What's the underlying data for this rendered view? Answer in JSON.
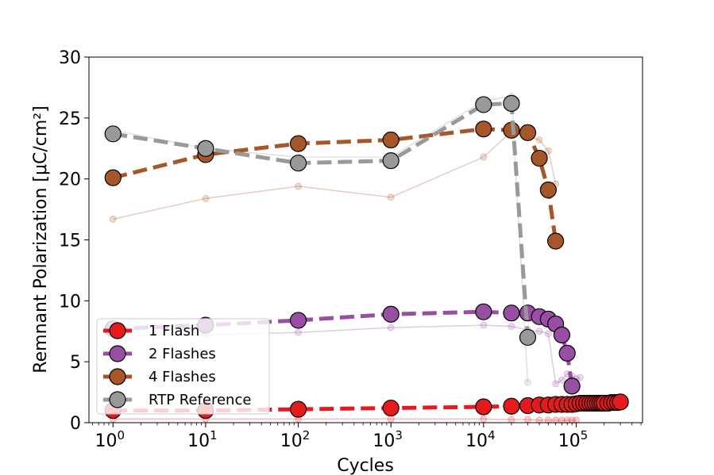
{
  "chart_data": {
    "type": "line",
    "title": "",
    "xlabel": "Cycles",
    "ylabel": "Remnant Polarization [μC/cm²]",
    "xscale": "log",
    "xlim": [
      0.55,
      520000
    ],
    "ylim": [
      0,
      30
    ],
    "x_ticks": [
      {
        "value": 1,
        "base": "10",
        "exp": "0"
      },
      {
        "value": 10,
        "base": "10",
        "exp": "1"
      },
      {
        "value": 100,
        "base": "10",
        "exp": "2"
      },
      {
        "value": 1000,
        "base": "10",
        "exp": "3"
      },
      {
        "value": 10000,
        "base": "10",
        "exp": "4"
      },
      {
        "value": 100000,
        "base": "10",
        "exp": "5"
      }
    ],
    "y_ticks": [
      "0",
      "5",
      "10",
      "15",
      "20",
      "25",
      "30"
    ],
    "legend_position": "lower-left",
    "series": [
      {
        "name": "1 Flash",
        "color": "#e41a1c",
        "main": {
          "x": [
            1,
            10,
            100,
            1000,
            10000,
            20000,
            30000,
            40000,
            50000,
            60000,
            70000,
            80000,
            90000,
            100000,
            110000,
            120000,
            130000,
            140000,
            150000,
            160000,
            170000,
            180000,
            190000,
            200000,
            220000,
            240000,
            260000,
            280000,
            300000
          ],
          "y": [
            1.0,
            1.0,
            1.1,
            1.2,
            1.3,
            1.35,
            1.4,
            1.45,
            1.45,
            1.5,
            1.5,
            1.5,
            1.5,
            1.55,
            1.6,
            1.6,
            1.6,
            1.6,
            1.6,
            1.6,
            1.6,
            1.6,
            1.6,
            1.6,
            1.6,
            1.65,
            1.65,
            1.65,
            1.7
          ]
        },
        "faint": {
          "x": [
            1,
            10,
            100,
            1000,
            10000,
            20000,
            30000,
            40000,
            50000,
            60000,
            70000,
            80000,
            90000,
            100000
          ],
          "y": [
            0.3,
            0.3,
            0.3,
            0.3,
            0.3,
            0.25,
            0.25,
            0.2,
            0.2,
            0.2,
            0.2,
            0.2,
            0.2,
            0.2
          ]
        }
      },
      {
        "name": "2 Flashes",
        "color": "#984ea3",
        "main": {
          "x": [
            1,
            10,
            100,
            1000,
            10000,
            20000,
            30000,
            40000,
            50000,
            60000,
            70000,
            80000,
            90000
          ],
          "y": [
            7.7,
            8.0,
            8.4,
            8.9,
            9.1,
            9.0,
            9.0,
            8.7,
            8.5,
            8.1,
            7.2,
            5.7,
            3.0
          ]
        },
        "faint": {
          "x": [
            1,
            10,
            100,
            1000,
            10000,
            20000,
            30000,
            40000,
            50000,
            60000,
            70000,
            80000,
            90000,
            100000,
            110000
          ],
          "y": [
            7.1,
            7.2,
            7.4,
            7.8,
            8.0,
            7.9,
            7.6,
            7.5,
            7.3,
            3.2,
            3.5,
            4.0,
            3.8,
            3.6,
            3.7
          ]
        }
      },
      {
        "name": "4 Flashes",
        "color": "#a65628",
        "main": {
          "x": [
            1,
            10,
            100,
            1000,
            10000,
            20000,
            30000,
            40000,
            50000,
            60000
          ],
          "y": [
            20.1,
            22.0,
            22.9,
            23.2,
            24.1,
            24.0,
            23.8,
            21.7,
            19.1,
            14.9
          ]
        },
        "faint": {
          "x": [
            1,
            10,
            100,
            1000,
            10000,
            20000,
            30000,
            40000,
            50000,
            60000
          ],
          "y": [
            16.7,
            18.4,
            19.4,
            18.5,
            21.8,
            23.9,
            23.5,
            23.2,
            22.3,
            19.6
          ]
        }
      },
      {
        "name": "RTP Reference",
        "color": "#999999",
        "main": {
          "x": [
            1,
            10,
            100,
            1000,
            10000,
            20000,
            30000
          ],
          "y": [
            23.7,
            22.5,
            21.3,
            21.5,
            26.1,
            26.2,
            7.0
          ]
        },
        "faint": {
          "x": [
            1,
            10,
            100,
            1000,
            10000,
            20000,
            30000
          ],
          "y": [
            24.0,
            22.5,
            21.8,
            21.8,
            26.4,
            26.8,
            3.3
          ]
        }
      }
    ]
  }
}
